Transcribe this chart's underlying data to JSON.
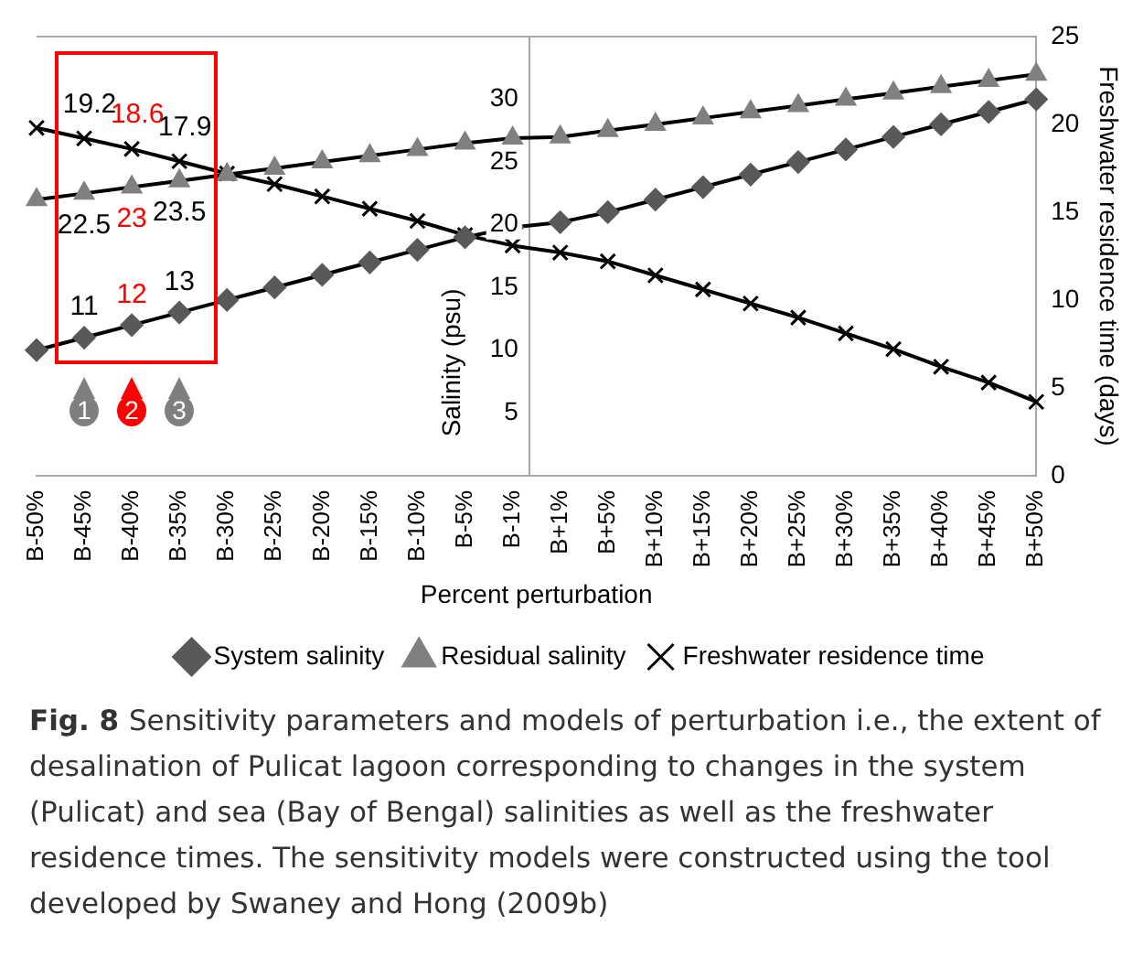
{
  "chart_data": {
    "type": "line",
    "xlabel": "Percent perturbation",
    "ylabel": "Salinity (psu)",
    "y2label": "Freshwater residence time (days)",
    "categories": [
      "B-50%",
      "B-45%",
      "B-40%",
      "B-35%",
      "B-30%",
      "B-25%",
      "B-20%",
      "B-15%",
      "B-10%",
      "B-5%",
      "B-1%",
      "B+1%",
      "B+5%",
      "B+10%",
      "B+15%",
      "B+20%",
      "B+25%",
      "B+30%",
      "B+35%",
      "B+40%",
      "B+45%",
      "B+50%"
    ],
    "series": [
      {
        "name": "System salinity",
        "color": "#595959",
        "marker": "diamond",
        "values": [
          10,
          11,
          12,
          13,
          14,
          15,
          16,
          17,
          18,
          19,
          19.8,
          20.2,
          21,
          22,
          23,
          24,
          25,
          26,
          27,
          28,
          29,
          30
        ],
        "value_labels": [
          null,
          "11",
          "12",
          "13",
          null,
          null,
          null,
          null,
          null,
          null,
          null,
          null,
          null,
          null,
          null,
          null,
          null,
          null,
          null,
          null,
          null,
          null
        ]
      },
      {
        "name": "Residual salinity",
        "color": "#808080",
        "marker": "triangle",
        "values": [
          22,
          22.5,
          23,
          23.5,
          24,
          24.5,
          25,
          25.5,
          26,
          26.5,
          26.9,
          27,
          27.5,
          28,
          28.5,
          29,
          29.5,
          30,
          30.5,
          31,
          31.5,
          32
        ],
        "value_labels": [
          null,
          "22.5",
          "23",
          "23.5",
          null,
          null,
          null,
          null,
          null,
          null,
          null,
          null,
          null,
          null,
          null,
          null,
          null,
          null,
          null,
          null,
          null,
          null
        ]
      },
      {
        "name": "Freshwater residence time",
        "color": "#000000",
        "marker": "cross",
        "axis": "y2",
        "values": [
          19.8,
          19.2,
          18.6,
          17.9,
          17.2,
          16.6,
          15.9,
          15.2,
          14.5,
          13.7,
          13.1,
          12.7,
          12.2,
          11.4,
          10.6,
          9.8,
          9,
          8.1,
          7.2,
          6.2,
          5.3,
          4.2
        ],
        "value_labels": [
          null,
          "19.2",
          "18.6",
          "17.9",
          null,
          null,
          null,
          null,
          null,
          null,
          null,
          null,
          null,
          null,
          null,
          null,
          null,
          null,
          null,
          null,
          null,
          null
        ]
      }
    ],
    "ylim": [
      0,
      35
    ],
    "yticks": [
      5,
      10,
      15,
      20,
      25,
      30
    ],
    "y2lim": [
      0,
      25
    ],
    "y2ticks": [
      0,
      5,
      10,
      15,
      20,
      25
    ],
    "grid": false,
    "legend": "bottom",
    "line_style": "solid",
    "annotations": [
      {
        "text": "1",
        "x": "B-45%"
      },
      {
        "text": "2",
        "x": "B-40%"
      },
      {
        "text": "3",
        "x": "B-35%"
      },
      "Fig. 8",
      "Sensitivity parameters and models of perturbation i.e., the extent of desalination of Pulicat lagoon corresponding to changes in the system (Pulicat) and sea (Bay of Bengal) salinities as well as the freshwater residence times. The sensitivity models were constructed using the tool developed by Swaney and Hong (2009b)"
    ]
  }
}
